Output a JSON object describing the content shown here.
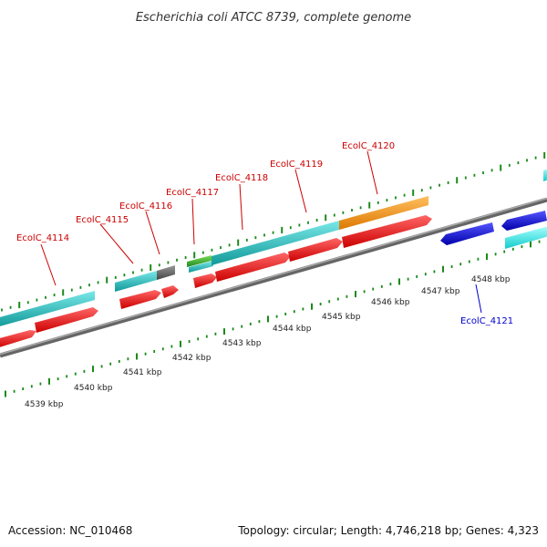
{
  "header": {
    "title": "Escherichia coli ATCC 8739, complete genome"
  },
  "footer": {
    "accession": "Accession: NC_010468",
    "summary": "Topology: circular; Length: 4,746,218 bp; Genes: 4,323"
  },
  "colors": {
    "backbone": "#888888",
    "tick": "#1a8a1a",
    "cds_forward": "#ff1a1a",
    "cds_reverse": "#1a1aee",
    "gene_forward": "#22c4c4",
    "gene_reverse": "#22eeee",
    "rrna_orange": "#ff9a1a",
    "trna_green": "#3cb83c",
    "pseudo_grey": "#666666",
    "label_forward": "#cc0000",
    "label_reverse": "#0000cc"
  },
  "scale": {
    "ticks": [
      {
        "label": "4539 kbp"
      },
      {
        "label": "4540 kbp"
      },
      {
        "label": "4541 kbp"
      },
      {
        "label": "4542 kbp"
      },
      {
        "label": "4543 kbp"
      },
      {
        "label": "4544 kbp"
      },
      {
        "label": "4545 kbp"
      },
      {
        "label": "4546 kbp"
      },
      {
        "label": "4547 kbp"
      },
      {
        "label": "4548 kbp"
      }
    ]
  },
  "genes": [
    {
      "label": "EcolC_4114",
      "strand": "forward"
    },
    {
      "label": "EcolC_4115",
      "strand": "forward"
    },
    {
      "label": "EcolC_4116",
      "strand": "forward"
    },
    {
      "label": "EcolC_4117",
      "strand": "forward"
    },
    {
      "label": "EcolC_4118",
      "strand": "forward"
    },
    {
      "label": "EcolC_4119",
      "strand": "forward"
    },
    {
      "label": "EcolC_4120",
      "strand": "forward"
    },
    {
      "label": "EcolC_4121",
      "strand": "reverse"
    }
  ]
}
